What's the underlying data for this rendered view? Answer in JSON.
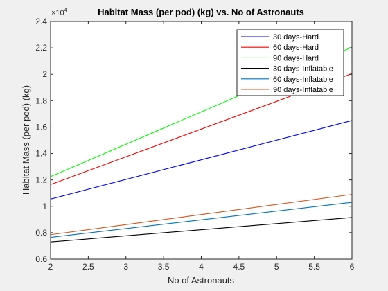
{
  "chart_data": {
    "type": "line",
    "title": "Habitat Mass (per pod) (kg) vs. No of Astronauts",
    "xlabel": "No of Astronauts",
    "ylabel": "Habitat Mass (per pod) (kg)",
    "y_exponent_label": "×10",
    "y_exponent_power": "4",
    "xlim": [
      2,
      6
    ],
    "ylim": [
      0.6,
      2.4
    ],
    "x_ticks": [
      "2",
      "2.5",
      "3",
      "3.5",
      "4",
      "4.5",
      "5",
      "5.5",
      "6"
    ],
    "y_ticks": [
      "0.6",
      "0.8",
      "1",
      "1.2",
      "1.4",
      "1.6",
      "1.8",
      "2",
      "2.2",
      "2.4"
    ],
    "grid": false,
    "legend_position": "top-right",
    "series": [
      {
        "name": "30 days-Hard",
        "color": "#0000ff",
        "x": [
          2,
          6
        ],
        "y": [
          1.055,
          1.65
        ]
      },
      {
        "name": "60 days-Hard",
        "color": "#ff0000",
        "x": [
          2,
          6
        ],
        "y": [
          1.165,
          2.005
        ]
      },
      {
        "name": "90 days-Hard",
        "color": "#00ff00",
        "x": [
          2,
          6
        ],
        "y": [
          1.225,
          2.205
        ]
      },
      {
        "name": "30 days-Inflatable",
        "color": "#000000",
        "x": [
          2,
          6
        ],
        "y": [
          0.73,
          0.915
        ]
      },
      {
        "name": "60 days-Inflatable",
        "color": "#0072bd",
        "x": [
          2,
          6
        ],
        "y": [
          0.765,
          1.03
        ]
      },
      {
        "name": "90 days-Inflatable",
        "color": "#d95319",
        "x": [
          2,
          6
        ],
        "y": [
          0.785,
          1.09
        ]
      }
    ]
  }
}
